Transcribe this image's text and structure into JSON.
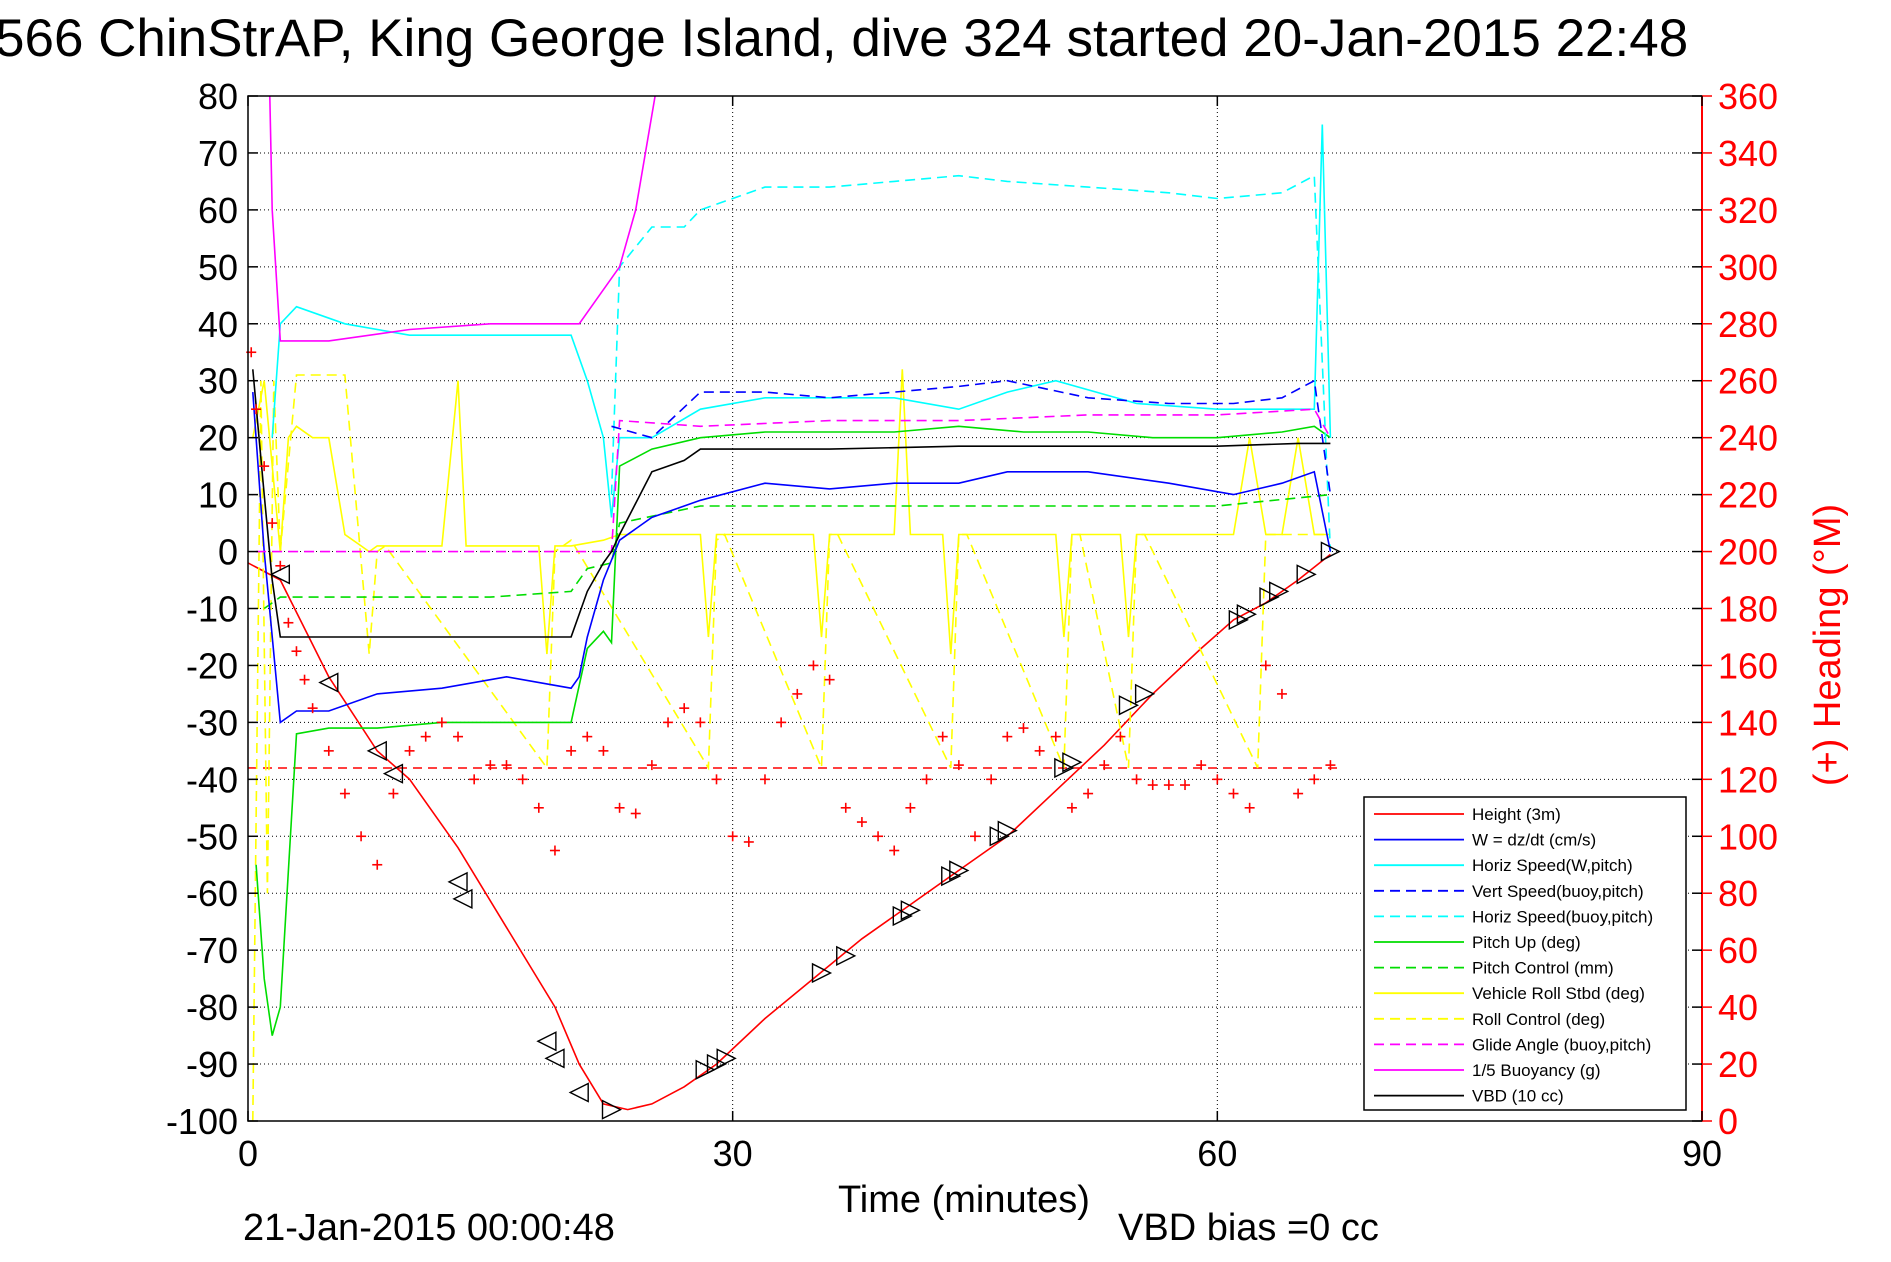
{
  "chart_data": {
    "type": "line",
    "title": "566 ChinStrAP, King George Island, dive 324 started 20-Jan-2015 22:48",
    "xlabel": "Time (minutes)",
    "ylabel_right": "(+) Heading (°M)",
    "footer_left": "21-Jan-2015 00:00:48",
    "footer_right": "VBD bias =0 cc",
    "xlim": [
      0,
      90
    ],
    "ylim": [
      -100,
      80
    ],
    "ylim_right": [
      0,
      360
    ],
    "x_ticks": [
      0,
      30,
      60,
      90
    ],
    "y_ticks": [
      80,
      70,
      60,
      50,
      40,
      30,
      20,
      10,
      0,
      -10,
      -20,
      -30,
      -40,
      -50,
      -60,
      -70,
      -80,
      -90,
      -100
    ],
    "y_ticks_right": [
      360,
      340,
      320,
      300,
      280,
      260,
      240,
      220,
      200,
      180,
      160,
      140,
      120,
      100,
      80,
      60,
      40,
      20,
      0
    ],
    "grid": true,
    "legend_position": "bottom-right",
    "heading_target": 124,
    "series": [
      {
        "name": "Height (3m)",
        "color": "#ff0000",
        "style": "solid",
        "x": [
          0,
          2,
          5,
          8,
          10,
          13,
          16,
          19,
          20.5,
          22,
          23.5,
          25,
          27,
          29,
          32,
          35,
          38,
          41,
          44,
          47,
          50,
          53,
          56,
          59,
          61,
          63,
          65,
          67
        ],
        "y": [
          -2,
          -5,
          -22,
          -35,
          -40,
          -52,
          -66,
          -80,
          -90,
          -97,
          -98,
          -97,
          -94,
          -90,
          -82,
          -75,
          -68,
          -62,
          -56,
          -50,
          -42,
          -34,
          -25,
          -17,
          -12,
          -9,
          -5,
          -0.5
        ]
      },
      {
        "name": "W = dz/dt (cm/s)",
        "color": "#0000ff",
        "style": "solid",
        "x": [
          0.3,
          1,
          2,
          3,
          5,
          8,
          12,
          16,
          20,
          20.5,
          21,
          22,
          23,
          25,
          28,
          32,
          36,
          40,
          44,
          47,
          52,
          57,
          61,
          64,
          66,
          67
        ],
        "y": [
          28,
          0,
          -30,
          -28,
          -28,
          -25,
          -24,
          -22,
          -24,
          -22,
          -15,
          -5,
          2,
          6,
          9,
          12,
          11,
          12,
          12,
          14,
          14,
          12,
          10,
          12,
          14,
          0
        ]
      },
      {
        "name": "Horiz Speed(W,pitch)",
        "color": "#00ffff",
        "style": "solid",
        "x": [
          1.5,
          2,
          3,
          6,
          10,
          15,
          20,
          21,
          22,
          22.5,
          23,
          25,
          28,
          32,
          36,
          40,
          44,
          47,
          50,
          55,
          60,
          64,
          66,
          66.5,
          67
        ],
        "y": [
          20,
          40,
          43,
          40,
          38,
          38,
          38,
          30,
          20,
          6,
          20,
          20,
          25,
          27,
          27,
          27,
          25,
          28,
          30,
          26,
          25,
          25,
          25,
          75,
          20
        ]
      },
      {
        "name": "Vert Speed(buoy,pitch)",
        "color": "#0000ff",
        "style": "dashed",
        "x": [
          22.5,
          25,
          28,
          32,
          36,
          40,
          44,
          47,
          52,
          57,
          61,
          64,
          66,
          67
        ],
        "y": [
          22,
          20,
          28,
          28,
          27,
          28,
          29,
          30,
          27,
          26,
          26,
          27,
          30,
          10
        ]
      },
      {
        "name": "Horiz Speed(buoy,pitch)",
        "color": "#00ffff",
        "style": "dashed",
        "x": [
          22.5,
          23,
          25,
          27,
          28,
          32,
          36,
          40,
          44,
          47,
          52,
          57,
          60,
          64,
          66,
          67
        ],
        "y": [
          10,
          50,
          57,
          57,
          60,
          64,
          64,
          65,
          66,
          65,
          64,
          63,
          62,
          63,
          66,
          0
        ]
      },
      {
        "name": "Pitch Up (deg)",
        "color": "#00dd00",
        "style": "solid",
        "x": [
          0.5,
          1,
          1.5,
          2,
          3,
          5,
          8,
          12,
          16,
          20,
          21,
          22,
          22.5,
          23,
          25,
          28,
          32,
          36,
          40,
          44,
          48,
          52,
          56,
          60,
          64,
          66,
          67
        ],
        "y": [
          -55,
          -75,
          -85,
          -80,
          -32,
          -31,
          -31,
          -30,
          -30,
          -30,
          -17,
          -14,
          -16,
          15,
          18,
          20,
          21,
          21,
          21,
          22,
          21,
          21,
          20,
          20,
          21,
          22,
          20
        ]
      },
      {
        "name": "Pitch Control (mm)",
        "color": "#00dd00",
        "style": "dashed",
        "x": [
          1,
          2,
          4,
          10,
          15,
          20,
          21,
          22.5,
          23,
          28,
          36,
          44,
          52,
          60,
          67
        ],
        "y": [
          -10,
          -8,
          -8,
          -8,
          -8,
          -7,
          -3,
          -2,
          5,
          8,
          8,
          8,
          8,
          8,
          10
        ]
      },
      {
        "name": "Vehicle Roll Stbd (deg)",
        "color": "#ffff00",
        "style": "solid",
        "x": [
          0.3,
          1,
          2,
          2.5,
          3,
          4,
          5,
          6,
          7,
          7.5,
          8,
          12,
          13,
          13.5,
          14,
          18,
          18.5,
          19,
          20,
          22,
          23,
          28,
          28.5,
          29,
          32,
          35,
          35.5,
          36,
          40,
          40.5,
          41,
          43,
          43.5,
          44,
          48,
          50,
          50.5,
          51,
          54,
          54.5,
          55,
          60,
          61,
          62,
          63,
          64,
          65,
          66,
          67
        ],
        "y": [
          20,
          30,
          0,
          20,
          22,
          20,
          20,
          3,
          1,
          0,
          1,
          1,
          30,
          1,
          1,
          1,
          -18,
          1,
          1,
          2,
          3,
          3,
          -15,
          3,
          3,
          3,
          -15,
          3,
          3,
          32,
          3,
          3,
          -18,
          3,
          3,
          3,
          -15,
          3,
          3,
          -15,
          3,
          3,
          3,
          20,
          3,
          3,
          20,
          3,
          3
        ]
      },
      {
        "name": "Roll Control (deg)",
        "color": "#ffff00",
        "style": "dashed",
        "x": [
          0.3,
          0.8,
          1.2,
          1.6,
          2,
          3,
          6,
          7.5,
          8,
          8.5,
          18.5,
          19,
          19.5,
          20,
          28.5,
          29,
          29.5,
          35.5,
          36,
          36.5,
          43.5,
          44,
          44.5,
          50.5,
          51,
          51.5,
          54.5,
          55,
          55.5,
          62.5,
          63,
          63.5,
          67
        ],
        "y": [
          -100,
          30,
          -60,
          30,
          0,
          31,
          31,
          -18,
          0,
          1,
          -38,
          0,
          1,
          2,
          -38,
          2,
          3,
          -38,
          3,
          3,
          -38,
          3,
          3,
          -38,
          3,
          3,
          -38,
          3,
          3,
          -38,
          3,
          3,
          3
        ]
      },
      {
        "name": "Glide Angle (buoy,pitch)",
        "color": "#ff00ff",
        "style": "dashed",
        "x": [
          0.5,
          10,
          20,
          22.5,
          23,
          28,
          36,
          44,
          52,
          60,
          66,
          67
        ],
        "y": [
          0,
          0,
          0,
          0,
          23,
          22,
          23,
          23,
          24,
          24,
          25,
          20
        ]
      },
      {
        "name": "1/5 Buoyancy (g)",
        "color": "#ff00ff",
        "style": "solid",
        "x": [
          1.2,
          1.5,
          2,
          5,
          10,
          15,
          20,
          20.5,
          23,
          24,
          25.2
        ],
        "y": [
          100,
          60,
          37,
          37,
          39,
          40,
          40,
          40,
          50,
          60,
          80
        ]
      },
      {
        "name": "VBD (10 cc)",
        "color": "#000000",
        "style": "solid",
        "x": [
          0.3,
          1,
          1.5,
          2,
          3,
          10,
          20,
          21,
          22,
          22.5,
          23,
          25,
          26,
          27,
          28,
          36,
          44,
          52,
          60,
          65,
          67
        ],
        "y": [
          32,
          10,
          -5,
          -15,
          -15,
          -15,
          -15,
          -7,
          -2,
          0,
          3,
          14,
          15,
          16,
          18,
          18,
          18.5,
          18.5,
          18.5,
          19,
          19
        ]
      }
    ],
    "heading_points": {
      "name": "(+) Heading (°M)",
      "color": "#ff0000",
      "marker": "+",
      "x": [
        0.2,
        0.5,
        1,
        1.5,
        2,
        2.5,
        3,
        3.5,
        4,
        5,
        6,
        7,
        8,
        9,
        10,
        11,
        12,
        13,
        14,
        15,
        16,
        17,
        18,
        19,
        20,
        21,
        22,
        23,
        24,
        25,
        26,
        27,
        28,
        29,
        30,
        31,
        32,
        33,
        34,
        35,
        36,
        37,
        38,
        39,
        40,
        41,
        42,
        43,
        44,
        45,
        46,
        47,
        48,
        49,
        50,
        51,
        52,
        53,
        54,
        55,
        56,
        57,
        58,
        59,
        60,
        61,
        62,
        63,
        64,
        65,
        66,
        67
      ],
      "y": [
        270,
        250,
        230,
        210,
        195,
        175,
        165,
        155,
        145,
        130,
        115,
        100,
        90,
        115,
        130,
        135,
        140,
        135,
        120,
        125,
        125,
        120,
        110,
        95,
        130,
        135,
        130,
        110,
        108,
        125,
        140,
        145,
        140,
        120,
        100,
        98,
        120,
        140,
        150,
        160,
        155,
        110,
        105,
        100,
        95,
        110,
        120,
        135,
        125,
        100,
        120,
        135,
        138,
        130,
        135,
        110,
        115,
        125,
        135,
        120,
        118,
        118,
        118,
        125,
        120,
        115,
        110,
        160,
        150,
        115,
        120,
        125
      ]
    },
    "triangle_markers": {
      "x": [
        2,
        5,
        8,
        9,
        13,
        13.3,
        18.5,
        19,
        20.5,
        22.5,
        28.3,
        29,
        29.6,
        35.5,
        37,
        40.5,
        41,
        43.5,
        44,
        46.5,
        47,
        50.5,
        51,
        54.5,
        55.5,
        61.3,
        61.8,
        63.2,
        63.8,
        65.5,
        67
      ],
      "y": [
        -4,
        -23,
        -35,
        -39,
        -58,
        -61,
        -86,
        -89,
        -95,
        -98,
        -91,
        -90,
        -89,
        -74,
        -71,
        -64,
        -63,
        -57,
        -56,
        -50,
        -49,
        -38,
        -37,
        -27,
        -25,
        -12,
        -11,
        -8,
        -7,
        -4,
        0
      ]
    }
  }
}
